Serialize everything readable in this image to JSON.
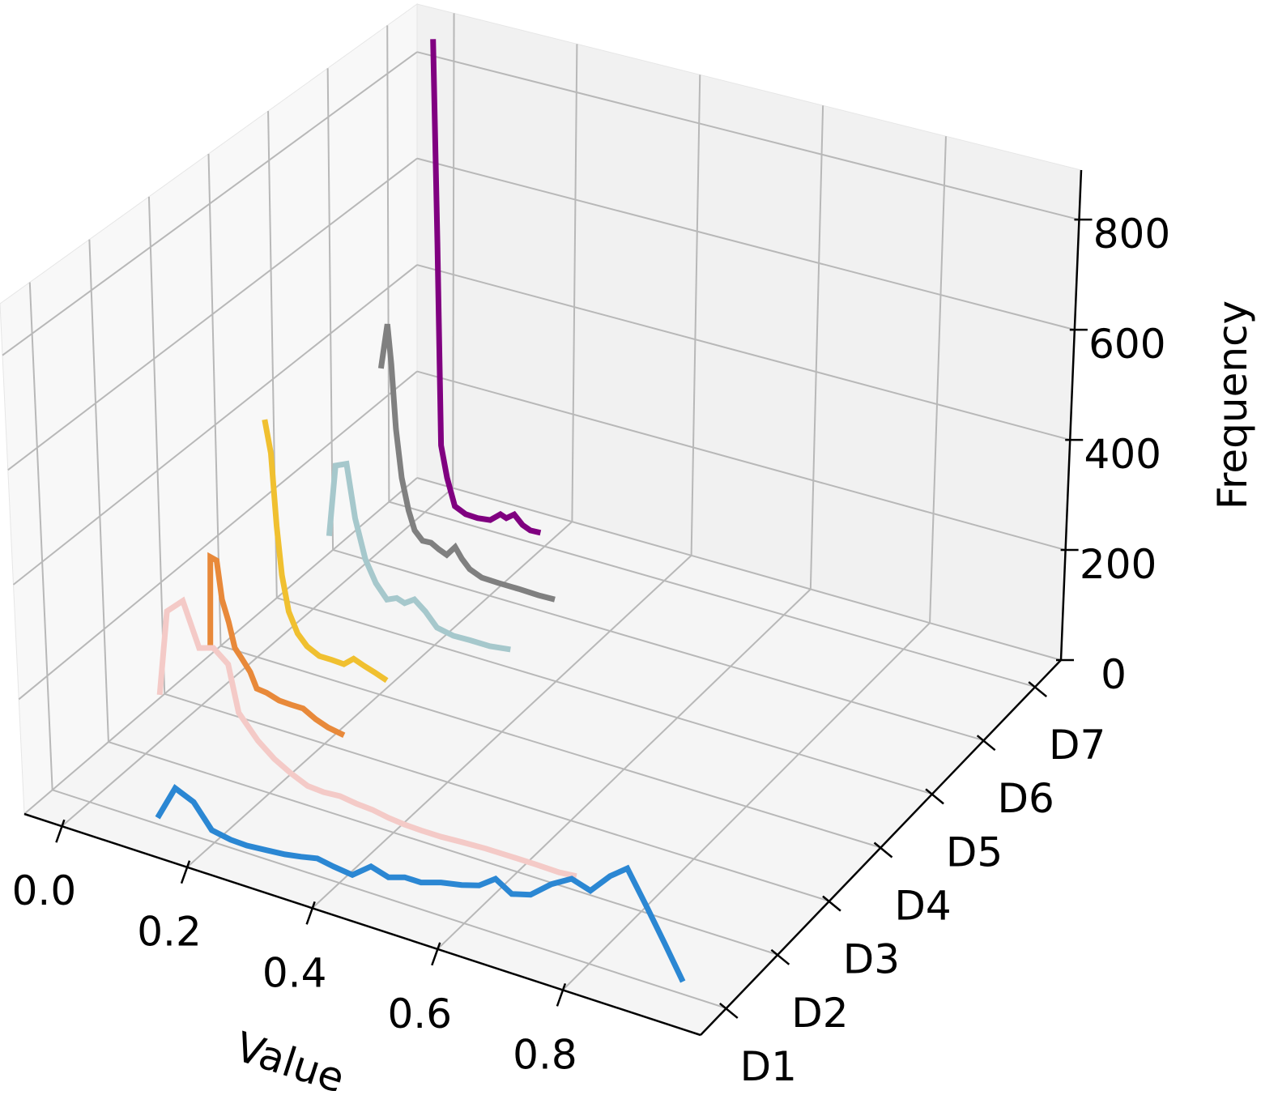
{
  "chart_data": {
    "type": "line3d",
    "xlabel": "Value",
    "zlabel": "Frequency",
    "xlim": [
      -0.06,
      1.02
    ],
    "xticks": [
      {
        "value": 0,
        "label": "0.0"
      },
      0.2,
      0.4,
      0.6,
      0.8
    ],
    "categories": [
      "D1",
      "D2",
      "D3",
      "D4",
      "D5",
      "D6",
      "D7"
    ],
    "zlim": [
      0,
      890
    ],
    "zticks": [
      0,
      200,
      400,
      600,
      800
    ],
    "grid": true,
    "series": [
      {
        "color": "#2b87d3",
        "x": [
          0.109,
          0.139,
          0.168,
          0.196,
          0.226,
          0.252,
          0.284,
          0.313,
          0.339,
          0.365,
          0.391,
          0.421,
          0.451,
          0.479,
          0.505,
          0.531,
          0.563,
          0.596,
          0.624,
          0.65,
          0.676,
          0.706,
          0.739,
          0.771,
          0.801,
          0.832,
          0.859,
          0.891,
          0.92,
          0.95
        ],
        "values": [
          11,
          73,
          59,
          20,
          14,
          13,
          16,
          19,
          24,
          30,
          25,
          21,
          46,
          37,
          46,
          46,
          57,
          64,
          73,
          93,
          76,
          85,
          114,
          134,
          124,
          159,
          181,
          126,
          75,
          21
        ]
      },
      {
        "color": "#f4cac7",
        "x": [
          0.026,
          0.042,
          0.068,
          0.092,
          0.115,
          0.138,
          0.153,
          0.183,
          0.209,
          0.235,
          0.262,
          0.288,
          0.314,
          0.34,
          0.366,
          0.392,
          0.418,
          0.445,
          0.477,
          0.51,
          0.549,
          0.588,
          0.627,
          0.667,
          0.695
        ],
        "values": [
          113,
          266,
          293,
          218,
          226,
          205,
          125,
          86,
          63,
          47,
          34,
          32,
          34,
          30,
          28,
          23,
          20,
          19,
          19,
          21,
          23,
          23,
          23,
          22,
          25
        ]
      },
      {
        "color": "#e8893a",
        "x": [
          0.017,
          0.021,
          0.031,
          0.038,
          0.048,
          0.057,
          0.067,
          0.081,
          0.091,
          0.107,
          0.127,
          0.146,
          0.166,
          0.186,
          0.206,
          0.232
        ],
        "values": [
          109,
          272,
          269,
          202,
          165,
          122,
          108,
          87,
          61,
          59,
          52,
          51,
          51,
          39,
          31,
          26
        ]
      },
      {
        "color": "#f0c030",
        "x": [
          0.02,
          0.029,
          0.036,
          0.043,
          0.053,
          0.067,
          0.082,
          0.102,
          0.122,
          0.142,
          0.158,
          0.175,
          0.192,
          0.212
        ],
        "values": [
          435,
          377,
          248,
          162,
          100,
          65,
          47,
          36,
          36,
          35,
          50,
          43,
          37,
          29
        ]
      },
      {
        "color": "#a6c8cc",
        "x": [
          0.028,
          0.04,
          0.058,
          0.071,
          0.087,
          0.104,
          0.122,
          0.138,
          0.151,
          0.167,
          0.185,
          0.204,
          0.231,
          0.258,
          0.291,
          0.325
        ],
        "values": [
          142,
          274,
          283,
          188,
          119,
          81,
          57,
          65,
          60,
          72,
          56,
          33,
          27,
          28,
          28,
          33
        ]
      },
      {
        "color": "#808080",
        "x": [
          0.022,
          0.033,
          0.039,
          0.046,
          0.055,
          0.066,
          0.076,
          0.089,
          0.103,
          0.116,
          0.129,
          0.143,
          0.154,
          0.167,
          0.187,
          0.214,
          0.248,
          0.281,
          0.308
        ],
        "values": [
          361,
          446,
          374,
          257,
          170,
          114,
          80,
          65,
          66,
          58,
          52,
          71,
          53,
          38,
          29,
          28,
          28,
          27,
          28
        ]
      },
      {
        "color": "#800080",
        "x": [
          0.014,
          0.021,
          0.027,
          0.037,
          0.05,
          0.068,
          0.088,
          0.109,
          0.126,
          0.136,
          0.149,
          0.163,
          0.176,
          0.193
        ],
        "values": [
          886,
          508,
          133,
          76,
          27,
          18,
          17,
          20,
          36,
          32,
          43,
          28,
          22,
          23
        ]
      }
    ]
  }
}
